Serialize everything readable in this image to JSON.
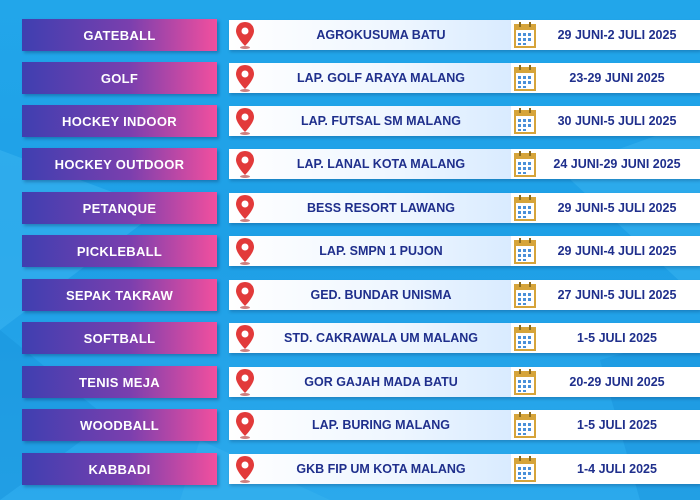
{
  "colors": {
    "background": "#22a6ea",
    "sport_gradient_start": "#3f3fb0",
    "sport_gradient_end": "#f24f9e",
    "text_dark": "#1f2f8c",
    "pin_red": "#e23a3a",
    "calendar_gold": "#d6a43a"
  },
  "icons": {
    "location": "location-pin-icon",
    "date": "calendar-icon"
  },
  "schedule": [
    {
      "sport": "GATEBALL",
      "venue": "AGROKUSUMA BATU",
      "date": "29 JUNI-2 JULI 2025"
    },
    {
      "sport": "GOLF",
      "venue": "LAP. GOLF ARAYA MALANG",
      "date": "23-29 JUNI 2025"
    },
    {
      "sport": "HOCKEY INDOOR",
      "venue": "LAP. FUTSAL SM MALANG",
      "date": "30 JUNI-5 JULI 2025"
    },
    {
      "sport": "HOCKEY OUTDOOR",
      "venue": "LAP. LANAL KOTA MALANG",
      "date": "24 JUNI-29 JUNI 2025"
    },
    {
      "sport": "PETANQUE",
      "venue": "BESS RESORT LAWANG",
      "date": "29 JUNI-5 JULI 2025"
    },
    {
      "sport": "PICKLEBALL",
      "venue": "LAP. SMPN 1 PUJON",
      "date": "29 JUNI-4 JULI 2025"
    },
    {
      "sport": "SEPAK TAKRAW",
      "venue": "GED. BUNDAR UNISMA",
      "date": "27 JUNI-5 JULI 2025"
    },
    {
      "sport": "SOFTBALL",
      "venue": "STD. CAKRAWALA UM MALANG",
      "date": "1-5 JULI 2025"
    },
    {
      "sport": "TENIS MEJA",
      "venue": "GOR GAJAH MADA BATU",
      "date": "20-29 JUNI 2025"
    },
    {
      "sport": "WOODBALL",
      "venue": "LAP. BURING MALANG",
      "date": "1-5 JULI 2025"
    },
    {
      "sport": "KABBADI",
      "venue": "GKB FIP UM KOTA MALANG",
      "date": "1-4 JULI 2025"
    }
  ]
}
